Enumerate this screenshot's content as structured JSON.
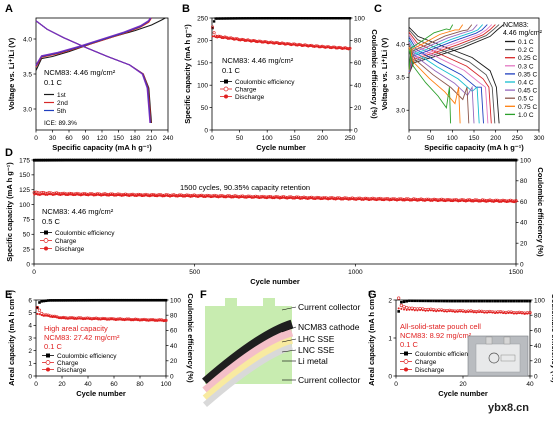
{
  "chart_data": [
    {
      "panel": "A",
      "type": "line",
      "xlabel": "Specific capacity (mA h g⁻¹)",
      "ylabel": "Voltage vs. Li⁺/Li (V)",
      "xlim": [
        0,
        240
      ],
      "ylim": [
        2.7,
        4.3
      ],
      "xticks": [
        "0",
        "30",
        "60",
        "90",
        "120",
        "150",
        "180",
        "210",
        "240"
      ],
      "yticks": [
        "3.0",
        "3.5",
        "4.0"
      ],
      "annotation": [
        "NCM83: 4.46 mg/cm²",
        "0.1 C"
      ],
      "ice_text": "ICE: 89.3%",
      "series": [
        {
          "name": "1st",
          "color": "#1a1a1a",
          "charge": {
            "x": [
              0,
              10,
              30,
              60,
              100,
              140,
              180,
              210,
              228,
              235
            ],
            "y": [
              3.55,
              3.72,
              3.75,
              3.82,
              3.93,
              4.03,
              4.12,
              4.2,
              4.27,
              4.3
            ]
          },
          "discharge": {
            "x": [
              0,
              20,
              50,
              90,
              130,
              170,
              195,
              205,
              208,
              210
            ],
            "y": [
              4.26,
              4.14,
              4.02,
              3.88,
              3.75,
              3.63,
              3.5,
              3.3,
              3.0,
              2.8
            ]
          }
        },
        {
          "name": "2nd",
          "color": "#d62728",
          "charge": {
            "x": [
              0,
              10,
              40,
              80,
              120,
              160,
              190,
              205,
              210
            ],
            "y": [
              3.6,
              3.74,
              3.79,
              3.88,
              3.98,
              4.08,
              4.17,
              4.24,
              4.3
            ]
          },
          "discharge": {
            "x": [
              0,
              20,
              50,
              90,
              130,
              170,
              195,
              204,
              207,
              209
            ],
            "y": [
              4.26,
              4.14,
              4.02,
              3.88,
              3.75,
              3.63,
              3.5,
              3.3,
              3.0,
              2.8
            ]
          }
        },
        {
          "name": "5th",
          "color": "#1f3fbf",
          "charge": {
            "x": [
              0,
              10,
              40,
              80,
              120,
              160,
              190,
              204,
              209
            ],
            "y": [
              3.62,
              3.75,
              3.8,
              3.89,
              3.99,
              4.09,
              4.18,
              4.25,
              4.3
            ]
          },
          "discharge": {
            "x": [
              0,
              20,
              50,
              90,
              130,
              170,
              194,
              203,
              206,
              208
            ],
            "y": [
              4.26,
              4.14,
              4.02,
              3.88,
              3.75,
              3.63,
              3.5,
              3.3,
              3.0,
              2.8
            ]
          }
        },
        {
          "name": "",
          "color": "#7b2cbf",
          "charge": {
            "x": [
              0,
              10,
              40,
              80,
              120,
              160,
              190,
              204,
              208
            ],
            "y": [
              3.63,
              3.76,
              3.81,
              3.9,
              4.0,
              4.1,
              4.19,
              4.26,
              4.3
            ]
          },
          "discharge": {
            "x": [
              0,
              20,
              50,
              90,
              130,
              170,
              193,
              202,
              205,
              207
            ],
            "y": [
              4.26,
              4.14,
              4.02,
              3.88,
              3.75,
              3.63,
              3.5,
              3.3,
              3.0,
              2.8
            ]
          }
        }
      ]
    },
    {
      "panel": "B",
      "type": "scatter",
      "xlabel": "Cycle number",
      "ylabel": "Specific capacity (mA h g⁻¹)",
      "y2label": "Coulombic efficiency (%)",
      "xlim": [
        0,
        250
      ],
      "ylim": [
        0,
        250
      ],
      "y2lim": [
        0,
        100
      ],
      "xticks": [
        "0",
        "50",
        "100",
        "150",
        "200",
        "250"
      ],
      "yticks": [
        "0",
        "50",
        "100",
        "150",
        "200",
        "250"
      ],
      "y2ticks": [
        "0",
        "20",
        "40",
        "60",
        "80",
        "100"
      ],
      "annotation": [
        "NCM83: 4.46 mg/cm²",
        "0.1 C"
      ],
      "legend": [
        "Coulombic efficiency",
        "Charge",
        "Discharge"
      ],
      "series": [
        {
          "name": "Coulombic efficiency",
          "axis": "y2",
          "color": "#000000",
          "x": [
            1,
            5,
            50,
            100,
            150,
            200,
            250
          ],
          "y": [
            91,
            99.5,
            99.7,
            99.8,
            99.8,
            99.8,
            99.8
          ]
        },
        {
          "name": "Charge",
          "axis": "y",
          "color": "#e02020",
          "x": [
            1,
            5,
            50,
            100,
            150,
            200,
            250
          ],
          "y": [
            230,
            210,
            202,
            196,
            191,
            186,
            182
          ]
        },
        {
          "name": "Discharge",
          "axis": "y",
          "color": "#e02020",
          "x": [
            1,
            5,
            50,
            100,
            150,
            200,
            250
          ],
          "y": [
            209,
            208,
            201,
            195,
            190,
            185,
            181
          ]
        }
      ]
    },
    {
      "panel": "C",
      "type": "line",
      "xlabel": "Specific capacity (mA h g⁻¹)",
      "ylabel": "Voltage vs. Li⁺/Li (V)",
      "xlim": [
        0,
        300
      ],
      "ylim": [
        2.7,
        4.4
      ],
      "xticks": [
        "0",
        "50",
        "100",
        "150",
        "200",
        "250",
        "300"
      ],
      "yticks": [
        "3.0",
        "3.5",
        "4.0"
      ],
      "legend_title": [
        "NCM83:",
        "4.46 mg/cm²"
      ],
      "series": [
        {
          "name": "0.1 C",
          "color": "#1a1a1a",
          "capacity": 208
        },
        {
          "name": "0.2 C",
          "color": "#555555",
          "capacity": 198
        },
        {
          "name": "0.25 C",
          "color": "#d62728",
          "capacity": 190
        },
        {
          "name": "0.3 C",
          "color": "#e377c2",
          "capacity": 182
        },
        {
          "name": "0.35 C",
          "color": "#1f3fbf",
          "capacity": 172
        },
        {
          "name": "0.4 C",
          "color": "#17becf",
          "capacity": 162
        },
        {
          "name": "0.45 C",
          "color": "#9467bd",
          "capacity": 150
        },
        {
          "name": "0.5 C",
          "color": "#8c564b",
          "capacity": 138
        },
        {
          "name": "0.75 C",
          "color": "#ff7f0e",
          "capacity": 118
        },
        {
          "name": "1.0 C",
          "color": "#2ca02c",
          "capacity": 96
        }
      ]
    },
    {
      "panel": "D",
      "type": "scatter",
      "xlabel": "Cycle number",
      "ylabel": "Specific capacity (mA h g⁻¹)",
      "y2label": "Coulombic efficiency (%)",
      "xlim": [
        0,
        1500
      ],
      "ylim": [
        0,
        175
      ],
      "y2lim": [
        0,
        100
      ],
      "xticks": [
        "0",
        "500",
        "1000",
        "1500"
      ],
      "yticks": [
        "0",
        "25",
        "50",
        "75",
        "100",
        "125",
        "150",
        "175"
      ],
      "y2ticks": [
        "0",
        "20",
        "40",
        "60",
        "80",
        "100"
      ],
      "annotation": [
        "NCM83: 4.46 mg/cm²",
        "0.5 C"
      ],
      "retention_text": "1500 cycles, 90.35% capacity retention",
      "legend": [
        "Coulombic efficiency",
        "Charge",
        "Discharge"
      ],
      "series": [
        {
          "name": "Coulombic efficiency",
          "axis": "y2",
          "color": "#000000",
          "x": [
            1,
            100,
            500,
            1000,
            1500
          ],
          "y": [
            99.8,
            99.9,
            99.9,
            99.9,
            99.9
          ]
        },
        {
          "name": "Charge",
          "axis": "y",
          "color": "#e02020",
          "x": [
            1,
            100,
            500,
            1000,
            1500
          ],
          "y": [
            120,
            118,
            115,
            110,
            106
          ]
        },
        {
          "name": "Discharge",
          "axis": "y",
          "color": "#e02020",
          "x": [
            1,
            100,
            500,
            1000,
            1500
          ],
          "y": [
            117,
            117,
            114,
            109,
            105
          ]
        }
      ]
    },
    {
      "panel": "E",
      "type": "scatter",
      "xlabel": "Cycle number",
      "ylabel": "Areal capacity (mA h cm⁻²)",
      "y2label": "Coulombic efficiency (%)",
      "xlim": [
        0,
        100
      ],
      "ylim": [
        0,
        6
      ],
      "y2lim": [
        0,
        100
      ],
      "xticks": [
        "0",
        "20",
        "40",
        "60",
        "80",
        "100"
      ],
      "yticks": [
        "0",
        "1",
        "2",
        "3",
        "4",
        "5",
        "6"
      ],
      "y2ticks": [
        "0",
        "20",
        "40",
        "60",
        "80",
        "100"
      ],
      "annotation": [
        "High areal capacity",
        "NCM83: 27.42 mg/cm²",
        "0.1 C"
      ],
      "legend": [
        "Coulombic efficiency",
        "Charge",
        "Discharge"
      ],
      "series": [
        {
          "name": "Coulombic efficiency",
          "axis": "y2",
          "color": "#000000",
          "x": [
            1,
            3,
            10,
            50,
            100
          ],
          "y": [
            90,
            98,
            99.5,
            99.7,
            99.7
          ]
        },
        {
          "name": "Charge",
          "axis": "y",
          "color": "#e02020",
          "x": [
            1,
            5,
            20,
            40,
            60,
            80,
            100
          ],
          "y": [
            5.4,
            4.85,
            4.6,
            4.55,
            4.5,
            4.45,
            4.4
          ]
        },
        {
          "name": "Discharge",
          "axis": "y",
          "color": "#e02020",
          "x": [
            1,
            5,
            20,
            40,
            60,
            80,
            100
          ],
          "y": [
            4.9,
            4.8,
            4.58,
            4.52,
            4.48,
            4.43,
            4.38
          ]
        }
      ]
    },
    {
      "panel": "G",
      "type": "scatter",
      "xlabel": "Cycle number",
      "ylabel": "Areal capacity (mA h cm⁻²)",
      "y2label": "Coulombic efficiency (%)",
      "xlim": [
        0,
        50
      ],
      "ylim": [
        0,
        2
      ],
      "y2lim": [
        0,
        100
      ],
      "xticks": [
        "0",
        "20",
        "40"
      ],
      "yticks": [
        "0",
        "1",
        "2"
      ],
      "y2ticks": [
        "0",
        "20",
        "40",
        "60",
        "80",
        "100"
      ],
      "annotation": [
        "All-solid-state pouch cell",
        "NCM83: 8.92 mg/cm²",
        "0.1 C"
      ],
      "legend": [
        "Coulombic efficiency",
        "Charge",
        "Discharge"
      ],
      "series": [
        {
          "name": "Coulombic efficiency",
          "axis": "y2",
          "color": "#000000",
          "x": [
            1,
            2,
            5,
            20,
            50
          ],
          "y": [
            85,
            97,
            99,
            98.5,
            98.5
          ]
        },
        {
          "name": "Charge",
          "axis": "y",
          "color": "#e02020",
          "x": [
            1,
            2,
            5,
            20,
            35,
            50
          ],
          "y": [
            2.05,
            1.85,
            1.78,
            1.72,
            1.69,
            1.66
          ]
        },
        {
          "name": "Discharge",
          "axis": "y",
          "color": "#e02020",
          "x": [
            1,
            2,
            5,
            20,
            35,
            50
          ],
          "y": [
            1.78,
            1.76,
            1.74,
            1.7,
            1.67,
            1.64
          ]
        }
      ]
    }
  ],
  "panel_f": {
    "layers": [
      {
        "label": "Current collector",
        "color": "#c8ecb0"
      },
      {
        "label": "NCM83 cathode",
        "color": "#1f1f1f"
      },
      {
        "label": "LHC SSE",
        "color": "#f4bfc8"
      },
      {
        "label": "LNC SSE",
        "color": "#f8eaa0"
      },
      {
        "label": "Li metal",
        "color": "#d9d9d9"
      },
      {
        "label": "Current collector",
        "color": "#c8ecb0"
      }
    ]
  },
  "panel_letters": [
    "A",
    "B",
    "C",
    "D",
    "E",
    "F",
    "G"
  ],
  "watermark": "ybx8.cn"
}
